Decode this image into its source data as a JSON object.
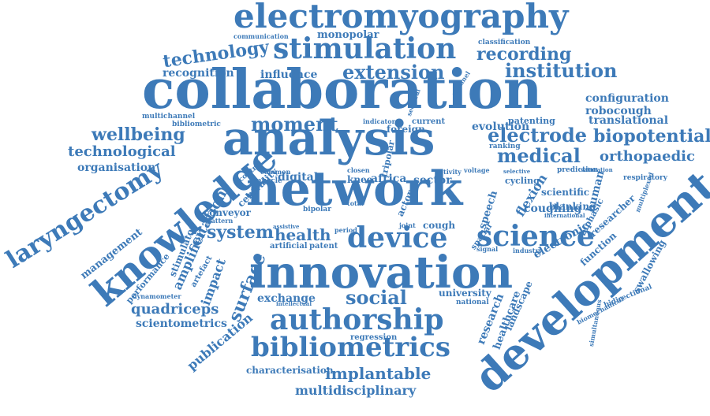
{
  "color": "#3d7ab8",
  "words": [
    "electromyography",
    "stimulation",
    "technology",
    "recording",
    "extension",
    "institution",
    "collaboration",
    "analysis",
    "network",
    "innovation",
    "development",
    "knowledge",
    "laryngectomy",
    "device",
    "science",
    "medical",
    "electrode",
    "biopotential",
    "moment",
    "wellbeing",
    "technological",
    "organisation",
    "recognition",
    "influence",
    "monopolar",
    "communication",
    "configuration",
    "robocough",
    "translational",
    "orthopaedic",
    "system",
    "health",
    "social",
    "authorship",
    "bibliometrics",
    "implantable",
    "multidisciplinary",
    "characterisation",
    "publication",
    "scientometrics",
    "quadriceps",
    "exchange",
    "surface",
    "impact",
    "amplifier",
    "stimulator",
    "management",
    "performance",
    "citation",
    "digital",
    "africa",
    "sector",
    "knee",
    "cough",
    "flexion",
    "coughing",
    "scientific",
    "human",
    "researcher",
    "electronic",
    "function",
    "swallowing",
    "university",
    "national",
    "research",
    "healthcare",
    "landscape",
    "biphasic",
    "bidirectional",
    "biomechanical",
    "simultaneous",
    "regression",
    "conveyor",
    "artificial",
    "patent",
    "pattern",
    "dynamometer",
    "evolution",
    "patenting",
    "ranking",
    "foreign",
    "current",
    "blanking",
    "prediction",
    "respiratory",
    "cycling",
    "speech",
    "spatial",
    "industry",
    "centrality",
    "control",
    "bipolar",
    "actor",
    "joint",
    "assistive",
    "period",
    "multichannel",
    "bibliometric",
    "multiplexed",
    "classification",
    "voltage",
    "activity",
    "closen",
    "total",
    "artefact",
    "intellectual",
    "muscle",
    "common",
    "sectoral",
    "channel",
    "indicator",
    "tripolar",
    "signal",
    "selective",
    "saturation",
    "international"
  ]
}
